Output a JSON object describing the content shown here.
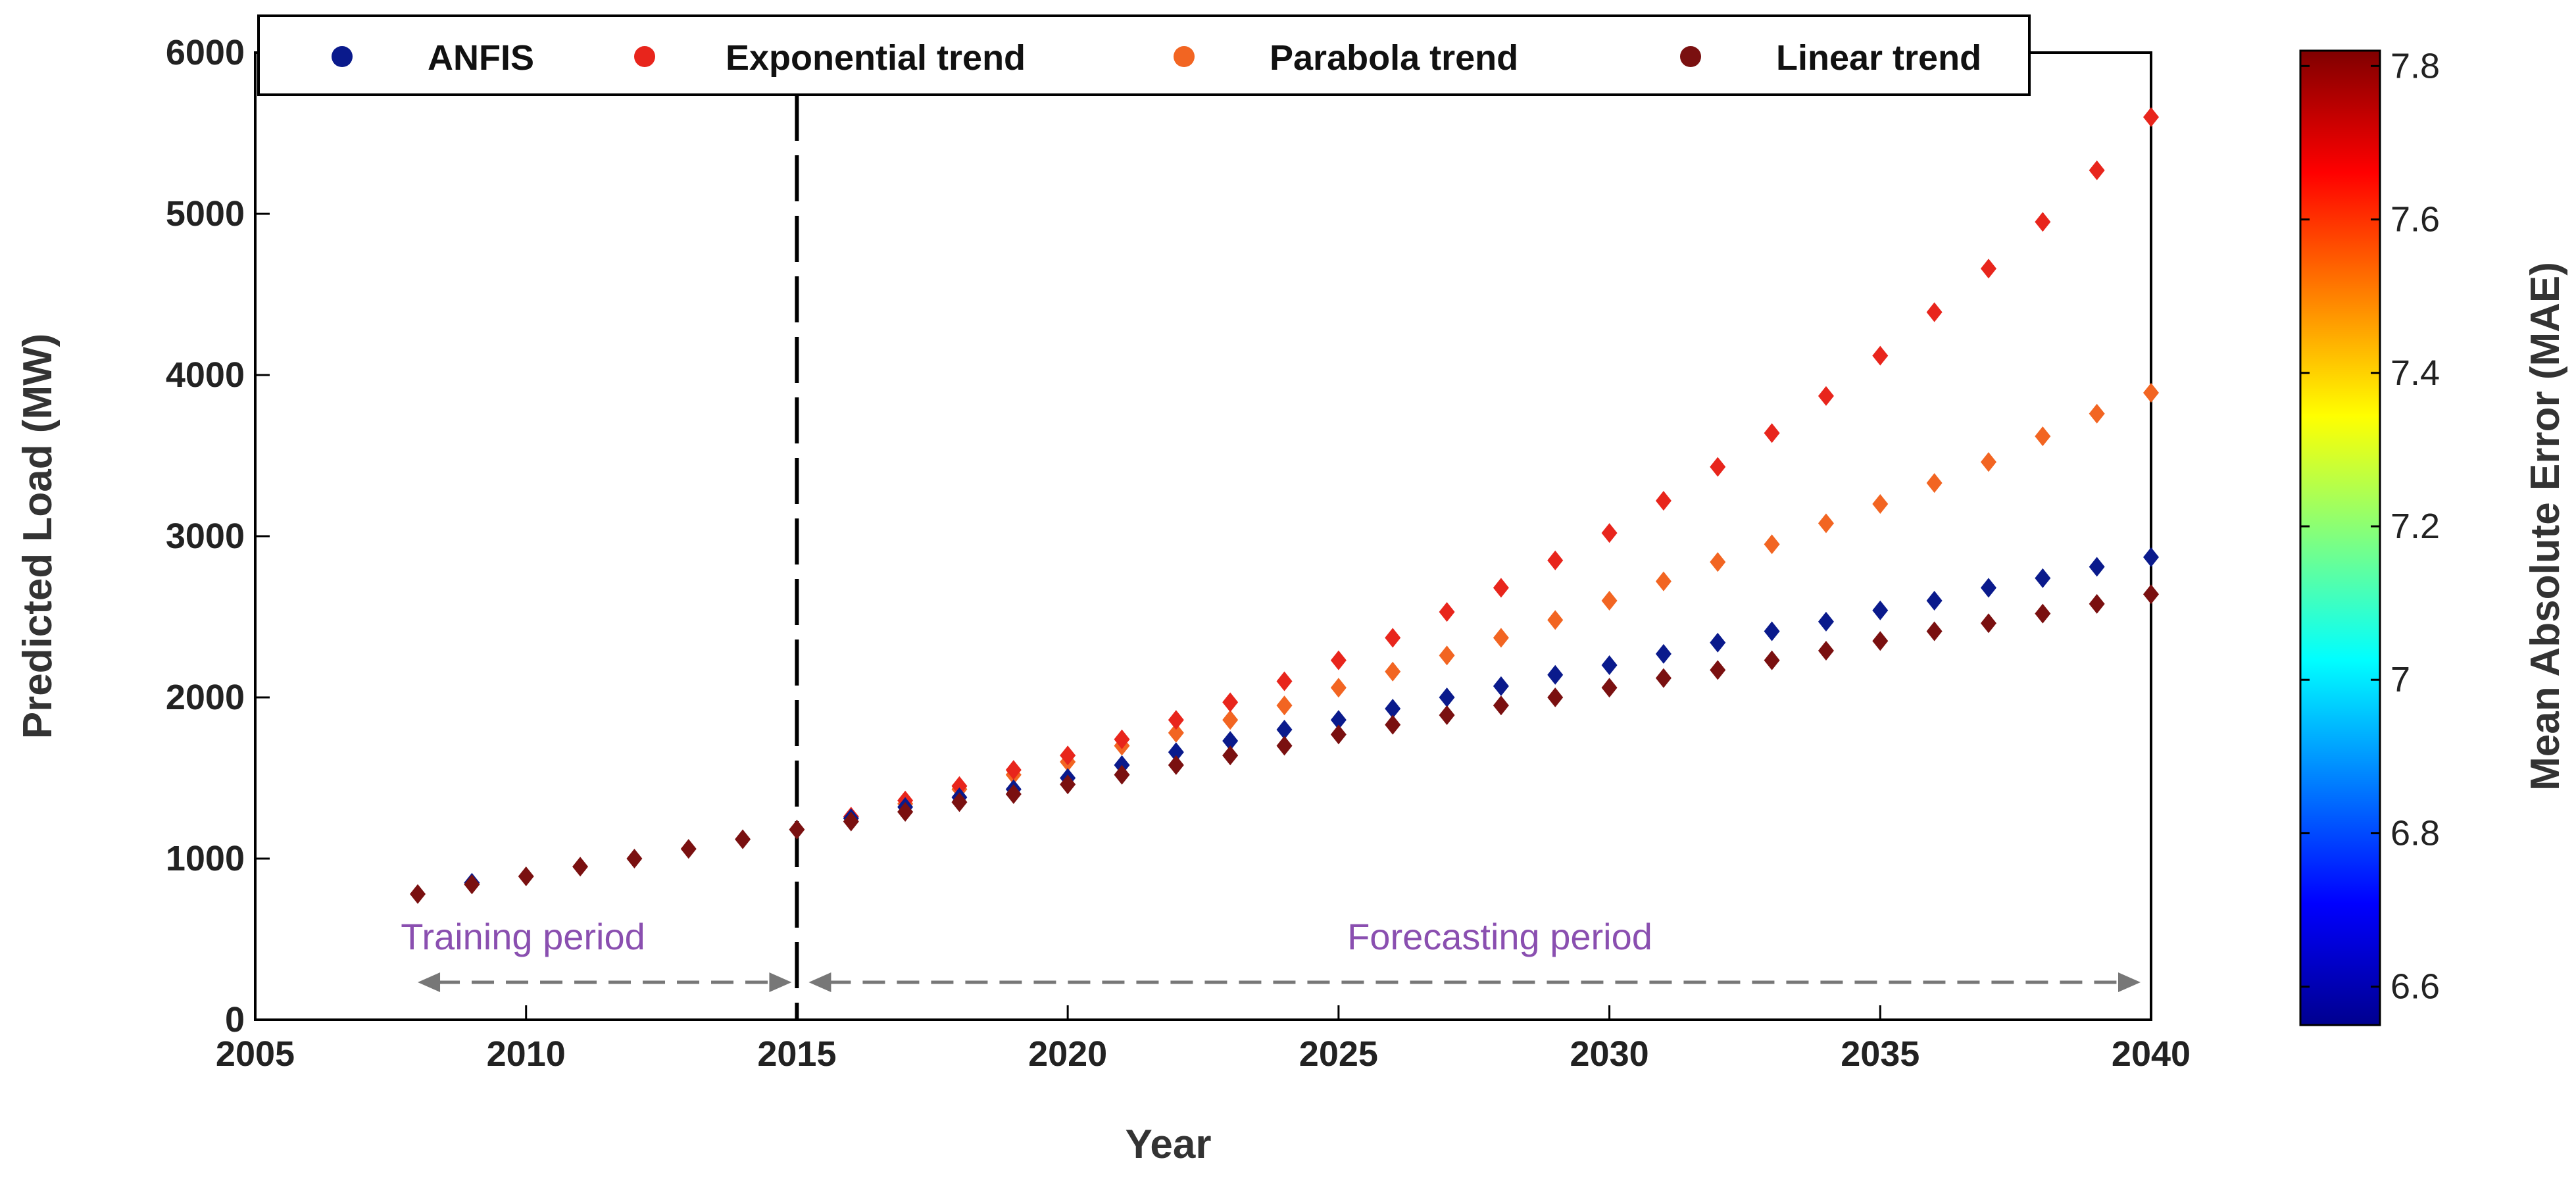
{
  "chart_data": {
    "type": "scatter",
    "xlabel": "Year",
    "ylabel": "Predicted Load (MW)",
    "xlim": [
      2005,
      2040
    ],
    "ylim": [
      0,
      6000
    ],
    "xticks": [
      "2005",
      "2010",
      "2015",
      "2020",
      "2025",
      "2030",
      "2035",
      "2040"
    ],
    "yticks": [
      "0",
      "1000",
      "2000",
      "3000",
      "4000",
      "5000",
      "6000"
    ],
    "legend_position": "top",
    "divider_year": 2015,
    "annotations": {
      "training": "Training period",
      "forecasting": "Forecasting period"
    },
    "colorbar": {
      "label": "Mean Absolute Error (MAE)",
      "range": [
        6.55,
        7.82
      ],
      "ticks": [
        "6.6",
        "6.8",
        "7",
        "7.2",
        "7.4",
        "7.6",
        "7.8"
      ]
    },
    "series": [
      {
        "name": "ANFIS",
        "color": "#0a1a8c",
        "x": [
          2009,
          2016,
          2017,
          2018,
          2019,
          2020,
          2021,
          2022,
          2023,
          2024,
          2025,
          2026,
          2027,
          2028,
          2029,
          2030,
          2031,
          2032,
          2033,
          2034,
          2035,
          2036,
          2037,
          2038,
          2039,
          2040
        ],
        "y": [
          850,
          1250,
          1320,
          1380,
          1430,
          1500,
          1580,
          1660,
          1730,
          1800,
          1860,
          1930,
          2000,
          2070,
          2140,
          2200,
          2270,
          2340,
          2410,
          2470,
          2540,
          2600,
          2680,
          2740,
          2810,
          2870
        ]
      },
      {
        "name": "Exponential trend",
        "color": "#e8251c",
        "x": [
          2016,
          2017,
          2018,
          2019,
          2020,
          2021,
          2022,
          2023,
          2024,
          2025,
          2026,
          2027,
          2028,
          2029,
          2030,
          2031,
          2032,
          2033,
          2034,
          2035,
          2036,
          2037,
          2038,
          2039,
          2040
        ],
        "y": [
          1260,
          1360,
          1450,
          1550,
          1640,
          1740,
          1860,
          1970,
          2100,
          2230,
          2370,
          2530,
          2680,
          2850,
          3020,
          3220,
          3430,
          3640,
          3870,
          4120,
          4390,
          4660,
          4950,
          5270,
          5600
        ]
      },
      {
        "name": "Parabola trend",
        "color": "#f26522",
        "x": [
          2016,
          2017,
          2018,
          2019,
          2020,
          2021,
          2022,
          2023,
          2024,
          2025,
          2026,
          2027,
          2028,
          2029,
          2030,
          2031,
          2032,
          2033,
          2034,
          2035,
          2036,
          2037,
          2038,
          2039,
          2040
        ],
        "y": [
          1250,
          1340,
          1430,
          1520,
          1600,
          1700,
          1780,
          1860,
          1950,
          2060,
          2160,
          2260,
          2370,
          2480,
          2600,
          2720,
          2840,
          2950,
          3080,
          3200,
          3330,
          3460,
          3620,
          3760,
          3890
        ]
      },
      {
        "name": "Linear trend",
        "color": "#7a1010",
        "x": [
          2008,
          2009,
          2010,
          2011,
          2012,
          2013,
          2014,
          2015,
          2016,
          2017,
          2018,
          2019,
          2020,
          2021,
          2022,
          2023,
          2024,
          2025,
          2026,
          2027,
          2028,
          2029,
          2030,
          2031,
          2032,
          2033,
          2034,
          2035,
          2036,
          2037,
          2038,
          2039,
          2040
        ],
        "y": [
          780,
          840,
          890,
          950,
          1000,
          1060,
          1120,
          1180,
          1230,
          1290,
          1350,
          1400,
          1460,
          1520,
          1580,
          1640,
          1700,
          1770,
          1830,
          1890,
          1950,
          2000,
          2060,
          2120,
          2170,
          2230,
          2290,
          2350,
          2410,
          2460,
          2520,
          2580,
          2640
        ]
      }
    ]
  }
}
